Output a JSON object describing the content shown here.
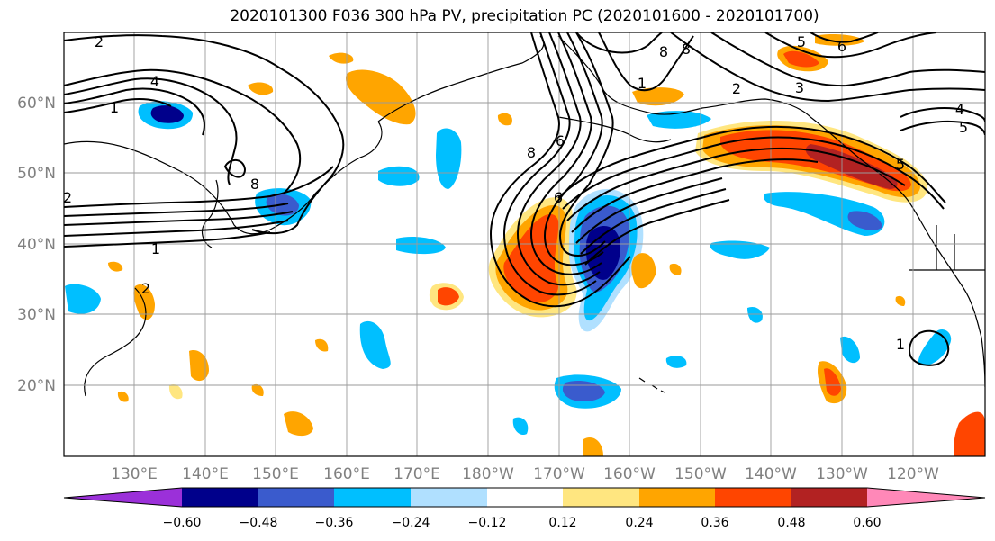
{
  "title": "2020101300 F036 300 hPa PV, precipitation PC (2020101600 - 2020101700)",
  "lat_labels": [
    "60°N",
    "50°N",
    "40°N",
    "30°N",
    "20°N"
  ],
  "lon_labels": [
    "130°E",
    "140°E",
    "150°E",
    "160°E",
    "170°E",
    "180°W",
    "170°W",
    "160°W",
    "150°W",
    "140°W",
    "130°W",
    "120°W"
  ],
  "pv_contour_labels": [
    "2",
    "1",
    "1",
    "2",
    "2",
    "4",
    "8",
    "6",
    "8",
    "8",
    "1",
    "2",
    "3",
    "4",
    "5",
    "6",
    "8",
    "6",
    "1",
    "5",
    "5"
  ],
  "colorbar": {
    "colors": [
      "#9b30d9",
      "#00008b",
      "#3a5bcd",
      "#00bfff",
      "#b0e0ff",
      "#ffffff",
      "#ffe680",
      "#ffa500",
      "#ff4500",
      "#b22222",
      "#ff88b8"
    ],
    "tick_labels": [
      "−0.60",
      "−0.48",
      "−0.36",
      "−0.24",
      "−0.12",
      "0.12",
      "0.24",
      "0.36",
      "0.48",
      "0.60"
    ]
  }
}
